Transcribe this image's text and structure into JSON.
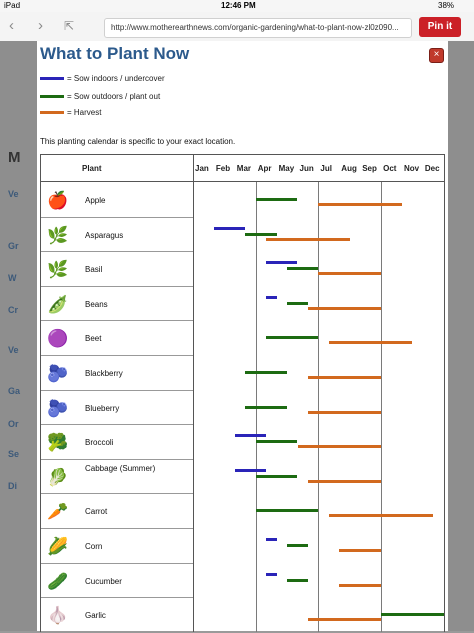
{
  "status": {
    "device": "iPad",
    "time": "12:46 PM",
    "battery": "38%"
  },
  "browser": {
    "url": "http://www.motherearthnews.com/organic-gardening/what-to-plant-now-zl0z090...",
    "pin_label": "Pin it"
  },
  "background_text": [
    "M",
    "Ve",
    "Gr",
    "W",
    "Cr",
    "Ve",
    "Ga",
    "Or",
    "Se",
    "Di"
  ],
  "modal": {
    "title": "What to Plant Now",
    "legend": [
      {
        "label": "= Sow indoors / undercover",
        "color": "#2a24b8"
      },
      {
        "label": "= Sow outdoors / plant out",
        "color": "#1d6b12"
      },
      {
        "label": "= Harvest",
        "color": "#d2691e"
      }
    ],
    "note": "This planting calendar is specific to your exact location.",
    "plant_header": "Plant",
    "months": [
      "Jan",
      "Feb",
      "Mar",
      "Apr",
      "May",
      "Jun",
      "Jul",
      "Aug",
      "Sep",
      "Oct",
      "Nov",
      "Dec"
    ],
    "plants": [
      {
        "name": "Apple",
        "icon": "apple-icon",
        "glyph": "🍎",
        "sow_indoors": null,
        "sow_outdoors": [
          3.0,
          5.0
        ],
        "harvest": [
          6.0,
          10.0
        ]
      },
      {
        "name": "Asparagus",
        "icon": "asparagus-icon",
        "glyph": "🌿",
        "sow_indoors": [
          1.0,
          2.5
        ],
        "sow_outdoors": [
          2.5,
          4.0
        ],
        "harvest": [
          3.5,
          7.5
        ]
      },
      {
        "name": "Basil",
        "icon": "basil-icon",
        "glyph": "🌿",
        "sow_indoors": [
          3.5,
          5.0
        ],
        "sow_outdoors": [
          4.5,
          6.0
        ],
        "harvest": [
          6.0,
          9.0
        ]
      },
      {
        "name": "Beans",
        "icon": "beans-icon",
        "glyph": "🫛",
        "sow_indoors": [
          3.5,
          4.0
        ],
        "sow_outdoors": [
          4.5,
          5.5
        ],
        "harvest": [
          5.5,
          9.0
        ]
      },
      {
        "name": "Beet",
        "icon": "beet-icon",
        "glyph": "🟣",
        "sow_indoors": null,
        "sow_outdoors": [
          3.5,
          6.0
        ],
        "harvest": [
          6.5,
          10.5
        ]
      },
      {
        "name": "Blackberry",
        "icon": "blackberry-icon",
        "glyph": "🫐",
        "sow_indoors": null,
        "sow_outdoors": [
          2.5,
          4.5
        ],
        "harvest": [
          5.5,
          9.0
        ]
      },
      {
        "name": "Blueberry",
        "icon": "blueberry-icon",
        "glyph": "🫐",
        "sow_indoors": null,
        "sow_outdoors": [
          2.5,
          4.5
        ],
        "harvest": [
          5.5,
          9.0
        ]
      },
      {
        "name": "Broccoli",
        "icon": "broccoli-icon",
        "glyph": "🥦",
        "sow_indoors": [
          2.0,
          3.5
        ],
        "sow_outdoors": [
          3.0,
          5.0
        ],
        "harvest": [
          5.0,
          9.0
        ]
      },
      {
        "name": "Cabbage (Summer)",
        "icon": "cabbage-icon",
        "glyph": "🥬",
        "sow_indoors": [
          2.0,
          3.5
        ],
        "sow_outdoors": [
          3.0,
          5.0
        ],
        "harvest": [
          5.5,
          9.0
        ]
      },
      {
        "name": "Carrot",
        "icon": "carrot-icon",
        "glyph": "🥕",
        "sow_indoors": null,
        "sow_outdoors": [
          3.0,
          6.0
        ],
        "harvest": [
          6.5,
          11.5
        ]
      },
      {
        "name": "Corn",
        "icon": "corn-icon",
        "glyph": "🌽",
        "sow_indoors": [
          3.5,
          4.0
        ],
        "sow_outdoors": [
          4.5,
          5.5
        ],
        "harvest": [
          7.0,
          9.0
        ]
      },
      {
        "name": "Cucumber",
        "icon": "cucumber-icon",
        "glyph": "🥒",
        "sow_indoors": [
          3.5,
          4.0
        ],
        "sow_outdoors": [
          4.5,
          5.5
        ],
        "harvest": [
          7.0,
          9.0
        ]
      },
      {
        "name": "Garlic",
        "icon": "garlic-icon",
        "glyph": "🧄",
        "sow_indoors": null,
        "sow_outdoors": [
          9.0,
          12.0
        ],
        "harvest": [
          5.5,
          9.0
        ]
      }
    ]
  }
}
